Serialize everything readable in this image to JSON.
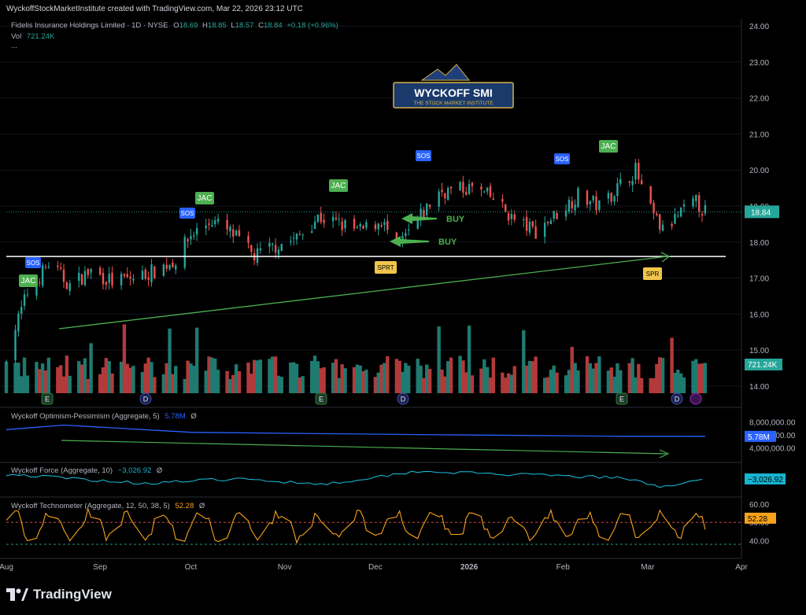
{
  "header": {
    "attribution": "WyckoffStockMarketInstitute created with TradingView.com, Mar 22, 2026 23:12 UTC"
  },
  "symbol": {
    "name": "Fidelis Insurance Holdings Limited · 1D · NYSE",
    "o_label": "O",
    "o": "18.69",
    "h_label": "H",
    "h": "18.85",
    "l_label": "L",
    "l": "18.57",
    "c_label": "C",
    "c": "18.84",
    "change": "+0.18 (+0.96%)",
    "vol_label": "Vol",
    "vol": "721.24K",
    "more": "..."
  },
  "logo": {
    "title": "WYCKOFF SMI",
    "subtitle": "THE STOCK MARKET INSTITUTE"
  },
  "indicators": [
    {
      "label": "Wyckoff Optimism-Pessimism (Aggregate, 5)",
      "value": "5.78M",
      "suffix": "Ø"
    },
    {
      "label": "Wyckoff Force (Aggregate, 10)",
      "value": "−3,026.92",
      "suffix": "Ø"
    },
    {
      "label": "Wyckoff Technometer (Aggregate, 12, 50, 38, 5)",
      "value": "52.28",
      "suffix": "Ø"
    }
  ],
  "price_axis": {
    "ticks": [
      "24.00",
      "23.00",
      "22.00",
      "21.00",
      "20.00",
      "19.00",
      "18.00",
      "17.00",
      "16.00",
      "15.00",
      "14.00"
    ],
    "current_price": "18.84",
    "current_volume": "721.24K"
  },
  "op_axis": {
    "ticks": [
      "8,000,000.00",
      "6,000,000.00",
      "4,000,000.00"
    ],
    "current": "5.78M"
  },
  "force_axis": {
    "current": "−3,026.92"
  },
  "tech_axis": {
    "ticks": [
      "60.00",
      "50.00",
      "40.00"
    ],
    "current": "52.28"
  },
  "time_axis": [
    "Aug",
    "Sep",
    "Oct",
    "Nov",
    "Dec",
    "2026",
    "Feb",
    "Mar",
    "Apr"
  ],
  "annotations": {
    "buy_labels": [
      "BUY",
      "BUY"
    ],
    "markers": [
      {
        "text": "SOS",
        "color": "#2962ff"
      },
      {
        "text": "JAC",
        "color": "#4caf50"
      },
      {
        "text": "SOS",
        "color": "#2962ff"
      },
      {
        "text": "JAC",
        "color": "#4caf50"
      },
      {
        "text": "JAC",
        "color": "#4caf50"
      },
      {
        "text": "SOS",
        "color": "#2962ff"
      },
      {
        "text": "SOS",
        "color": "#2962ff"
      },
      {
        "text": "JAC",
        "color": "#4caf50"
      },
      {
        "text": "SPRT",
        "color": "#f0c54a"
      },
      {
        "text": "SPR",
        "color": "#f0c54a"
      }
    ],
    "events": [
      "E",
      "D",
      "E",
      "D",
      "E",
      "D",
      "D"
    ]
  },
  "colors": {
    "up": "#26a69a",
    "down": "#ef5350",
    "volume_up": "#1f7a70",
    "volume_down": "#b23a3a",
    "op_line": "#2962ff",
    "force_line": "#17b4cf",
    "tech_line": "#f7a21b",
    "trend": "#4caf50",
    "support": "#ffffff"
  },
  "brand": {
    "name": "TradingView"
  },
  "chart_data": {
    "type": "candlestick",
    "x_range": [
      "2025-08-01",
      "2026-04-01"
    ],
    "price_ylim": [
      13.8,
      24.2
    ],
    "support_level": 17.6,
    "close_path": [
      [
        "2025-08-01",
        14.9
      ],
      [
        "2025-08-08",
        16.6
      ],
      [
        "2025-08-15",
        17.4
      ],
      [
        "2025-08-22",
        16.8
      ],
      [
        "2025-08-29",
        17.2
      ],
      [
        "2025-09-05",
        16.9
      ],
      [
        "2025-09-12",
        17.0
      ],
      [
        "2025-09-19",
        17.2
      ],
      [
        "2025-09-26",
        17.5
      ],
      [
        "2025-10-01",
        18.2
      ],
      [
        "2025-10-08",
        18.6
      ],
      [
        "2025-10-15",
        18.2
      ],
      [
        "2025-10-22",
        17.6
      ],
      [
        "2025-10-29",
        17.9
      ],
      [
        "2025-11-05",
        18.1
      ],
      [
        "2025-11-12",
        18.7
      ],
      [
        "2025-11-19",
        18.5
      ],
      [
        "2025-11-26",
        18.3
      ],
      [
        "2025-12-03",
        18.6
      ],
      [
        "2025-12-08",
        17.8
      ],
      [
        "2025-12-15",
        18.6
      ],
      [
        "2025-12-22",
        19.4
      ],
      [
        "2026-01-02",
        19.5
      ],
      [
        "2026-01-09",
        19.2
      ],
      [
        "2026-01-16",
        18.6
      ],
      [
        "2026-01-23",
        18.3
      ],
      [
        "2026-01-30",
        18.8
      ],
      [
        "2026-02-06",
        19.3
      ],
      [
        "2026-02-13",
        19.0
      ],
      [
        "2026-02-20",
        19.6
      ],
      [
        "2026-02-25",
        20.0
      ],
      [
        "2026-03-01",
        19.0
      ],
      [
        "2026-03-06",
        18.3
      ],
      [
        "2026-03-12",
        18.8
      ],
      [
        "2026-03-17",
        19.1
      ],
      [
        "2026-03-20",
        18.84
      ]
    ],
    "op_ylim": [
      3000000,
      9000000
    ],
    "op_path": [
      [
        "2025-08-01",
        6800000
      ],
      [
        "2025-08-20",
        7500000
      ],
      [
        "2025-10-01",
        6400000
      ],
      [
        "2025-12-15",
        6050000
      ],
      [
        "2026-02-20",
        5800000
      ],
      [
        "2026-03-20",
        5780000
      ]
    ],
    "force_path": [
      [
        "2025-08-01",
        -2000
      ],
      [
        "2025-09-15",
        -3500
      ],
      [
        "2025-10-15",
        -2800
      ],
      [
        "2025-11-15",
        -3600
      ],
      [
        "2025-12-15",
        -1500
      ],
      [
        "2026-01-10",
        -2000
      ],
      [
        "2026-02-20",
        -2600
      ],
      [
        "2026-03-05",
        -4000
      ],
      [
        "2026-03-20",
        -3026.92
      ]
    ],
    "tech_ylim": [
      32,
      63
    ],
    "tech_dashed_levels": [
      50,
      38
    ],
    "tech_last": 52.28
  }
}
